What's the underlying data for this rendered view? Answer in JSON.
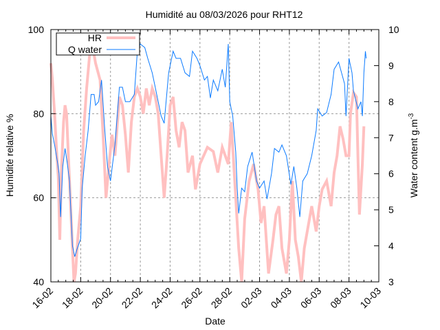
{
  "chart_data": {
    "type": "line",
    "title": "Humidité au 08/03/2026 pour RHT12",
    "xlabel": "Date",
    "ylabel": "Humidité relative %",
    "y2label": "Water content g.m",
    "y2label_sup": "-3",
    "xlim": [
      0,
      22
    ],
    "ylim": [
      40,
      100
    ],
    "y2lim": [
      3,
      10
    ],
    "x_unit": "days since 16-02",
    "x_ticks": [
      {
        "value": 0,
        "label": "16-02"
      },
      {
        "value": 2,
        "label": "18-02"
      },
      {
        "value": 4,
        "label": "20-02"
      },
      {
        "value": 6,
        "label": "22-02"
      },
      {
        "value": 8,
        "label": "24-02"
      },
      {
        "value": 10,
        "label": "26-02"
      },
      {
        "value": 12,
        "label": "28-02"
      },
      {
        "value": 14,
        "label": "02-03"
      },
      {
        "value": 16,
        "label": "04-03"
      },
      {
        "value": 18,
        "label": "06-03"
      },
      {
        "value": 20,
        "label": "08-03"
      },
      {
        "value": 22,
        "label": "10-03"
      }
    ],
    "y_ticks": [
      {
        "value": 40,
        "label": "40"
      },
      {
        "value": 60,
        "label": "60"
      },
      {
        "value": 80,
        "label": "80"
      },
      {
        "value": 100,
        "label": "100"
      }
    ],
    "y2_ticks": [
      {
        "value": 3,
        "label": "3"
      },
      {
        "value": 4,
        "label": "4"
      },
      {
        "value": 5,
        "label": "5"
      },
      {
        "value": 6,
        "label": "6"
      },
      {
        "value": 7,
        "label": "7"
      },
      {
        "value": 8,
        "label": "8"
      },
      {
        "value": 9,
        "label": "9"
      },
      {
        "value": 10,
        "label": "10"
      }
    ],
    "grid": {
      "x": true,
      "y_values": [
        60,
        80
      ]
    },
    "legend": {
      "position": "top-left"
    },
    "series": [
      {
        "name": "HR",
        "axis": "y1",
        "color": "#ffc0c0",
        "x": [
          0,
          0.1,
          0.25,
          0.4,
          0.5,
          0.6,
          0.7,
          0.85,
          0.95,
          1.05,
          1.2,
          1.3,
          1.45,
          1.55,
          1.65,
          1.8,
          2.0,
          2.2,
          2.4,
          2.6,
          2.8,
          3.0,
          3.3,
          3.5,
          3.7,
          3.9,
          4.1,
          4.3,
          4.6,
          4.8,
          5.0,
          5.2,
          5.4,
          5.6,
          5.8,
          6.0,
          6.2,
          6.4,
          6.6,
          6.8,
          7.0,
          7.2,
          7.4,
          7.6,
          7.8,
          8.0,
          8.2,
          8.4,
          8.6,
          8.8,
          9.0,
          9.2,
          9.5,
          9.7,
          10.0,
          10.5,
          10.9,
          11.2,
          11.5,
          11.9,
          12.1,
          12.4,
          12.6,
          12.8,
          13.0,
          13.3,
          13.6,
          13.9,
          14.1,
          14.3,
          14.6,
          14.9,
          15.1,
          15.3,
          15.5,
          15.8,
          16.0,
          16.2,
          16.4,
          16.6,
          16.8,
          17.0,
          17.2,
          17.5,
          17.8,
          18.0,
          18.2,
          18.5,
          18.8,
          19.0,
          19.2,
          19.4,
          19.6,
          19.8,
          20.0,
          20.1,
          20.3,
          20.5,
          20.6,
          20.7,
          20.9,
          21.0
        ],
        "values": [
          92,
          88,
          80,
          70,
          65,
          50,
          66,
          78,
          82,
          80,
          68,
          60,
          48,
          40,
          42,
          50,
          58,
          76,
          86,
          94,
          96,
          92,
          88,
          75,
          60,
          68,
          75,
          70,
          84,
          82,
          75,
          66,
          78,
          84,
          86,
          84,
          80,
          86,
          82,
          86,
          84,
          80,
          70,
          60,
          70,
          82,
          84,
          76,
          72,
          78,
          76,
          66,
          70,
          62,
          68,
          72,
          71,
          66,
          72,
          68,
          78,
          60,
          48,
          40,
          55,
          64,
          68,
          62,
          54,
          58,
          42,
          50,
          56,
          58,
          48,
          42,
          50,
          64,
          50,
          46,
          40,
          48,
          52,
          58,
          52,
          58,
          62,
          64,
          58,
          66,
          70,
          77,
          74,
          70,
          70,
          80,
          85,
          84,
          70,
          56,
          68,
          77
        ]
      },
      {
        "name": "Q water",
        "axis": "y2",
        "color": "#0a7aff",
        "x": [
          0,
          0.1,
          0.25,
          0.45,
          0.55,
          0.65,
          0.8,
          0.95,
          1.1,
          1.25,
          1.45,
          1.6,
          1.75,
          2.0,
          2.1,
          2.3,
          2.5,
          2.7,
          2.9,
          3.0,
          3.2,
          3.4,
          3.6,
          3.8,
          4.0,
          4.3,
          4.6,
          4.8,
          5.0,
          5.3,
          5.6,
          5.8,
          6.0,
          6.3,
          6.5,
          6.8,
          7.0,
          7.2,
          7.4,
          7.6,
          7.9,
          8.2,
          8.4,
          8.7,
          9.0,
          9.3,
          9.5,
          9.8,
          10.0,
          10.3,
          10.5,
          10.7,
          10.9,
          11.2,
          11.5,
          11.7,
          11.9,
          12.0,
          12.2,
          12.4,
          12.5,
          12.6,
          12.8,
          13.0,
          13.2,
          13.5,
          13.8,
          14.0,
          14.3,
          14.5,
          14.8,
          15.0,
          15.3,
          15.5,
          15.8,
          16.1,
          16.3,
          16.5,
          16.7,
          16.9,
          17.2,
          17.5,
          17.8,
          17.9,
          18.2,
          18.5,
          18.8,
          19.0,
          19.3,
          19.5,
          19.7,
          19.8,
          20.0,
          20.2,
          20.3,
          20.6,
          20.8,
          20.9,
          21.0,
          21.1,
          21.15
        ],
        "values": [
          7.6,
          7.1,
          6.8,
          6.3,
          6.0,
          4.8,
          6.2,
          6.7,
          6.3,
          5.8,
          4.0,
          3.7,
          3.9,
          4.2,
          5.6,
          6.5,
          7.2,
          8.2,
          8.2,
          7.9,
          8.0,
          8.6,
          7.3,
          6.2,
          5.8,
          6.8,
          8.4,
          8.4,
          8.0,
          8.0,
          8.2,
          9.4,
          9.6,
          9.5,
          9.2,
          8.8,
          8.4,
          8.0,
          7.6,
          7.4,
          8.8,
          9.4,
          9.2,
          9.2,
          8.8,
          8.7,
          9.4,
          9.2,
          9.0,
          8.6,
          8.7,
          8.1,
          8.6,
          8.3,
          8.9,
          8.4,
          9.6,
          8.0,
          7.6,
          6.6,
          5.6,
          4.9,
          5.6,
          5.5,
          6.2,
          6.6,
          5.8,
          5.6,
          5.8,
          5.3,
          6.0,
          6.7,
          6.6,
          6.8,
          6.5,
          5.7,
          6.2,
          5.6,
          4.8,
          5.8,
          6.0,
          6.5,
          7.2,
          7.8,
          7.6,
          7.7,
          8.2,
          8.9,
          9.1,
          8.8,
          8.5,
          7.6,
          9.2,
          8.8,
          8.3,
          7.8,
          8.0,
          7.6,
          8.8,
          9.4,
          9.2
        ]
      }
    ]
  }
}
